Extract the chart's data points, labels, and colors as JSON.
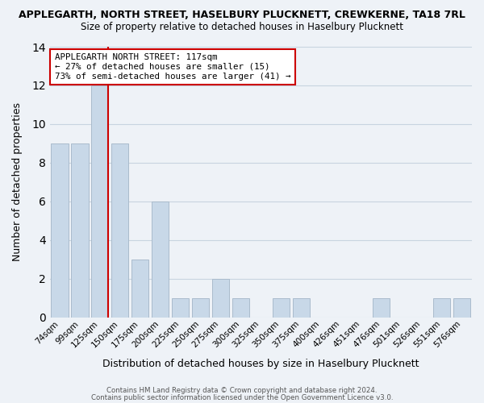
{
  "title": "APPLEGARTH, NORTH STREET, HASELBURY PLUCKNETT, CREWKERNE, TA18 7RL",
  "subtitle": "Size of property relative to detached houses in Haselbury Plucknett",
  "xlabel": "Distribution of detached houses by size in Haselbury Plucknett",
  "ylabel": "Number of detached properties",
  "footer_line1": "Contains HM Land Registry data © Crown copyright and database right 2024.",
  "footer_line2": "Contains public sector information licensed under the Open Government Licence v3.0.",
  "bar_labels": [
    "74sqm",
    "99sqm",
    "125sqm",
    "150sqm",
    "175sqm",
    "200sqm",
    "225sqm",
    "250sqm",
    "275sqm",
    "300sqm",
    "325sqm",
    "350sqm",
    "375sqm",
    "400sqm",
    "426sqm",
    "451sqm",
    "476sqm",
    "501sqm",
    "526sqm",
    "551sqm",
    "576sqm"
  ],
  "bar_values": [
    9,
    9,
    12,
    9,
    3,
    6,
    1,
    1,
    2,
    1,
    0,
    1,
    1,
    0,
    0,
    0,
    1,
    0,
    0,
    1,
    1
  ],
  "bar_color": "#c8d8e8",
  "bar_edge_color": "#aabbcc",
  "grid_color": "#c8d4e0",
  "background_color": "#eef2f7",
  "vline_x_index": 2,
  "vline_color": "#cc0000",
  "annotation_title": "APPLEGARTH NORTH STREET: 117sqm",
  "annotation_line1": "← 27% of detached houses are smaller (15)",
  "annotation_line2": "73% of semi-detached houses are larger (41) →",
  "annotation_box_color": "#ffffff",
  "annotation_box_edge_color": "#cc0000",
  "ylim": [
    0,
    14
  ],
  "yticks": [
    0,
    2,
    4,
    6,
    8,
    10,
    12,
    14
  ]
}
